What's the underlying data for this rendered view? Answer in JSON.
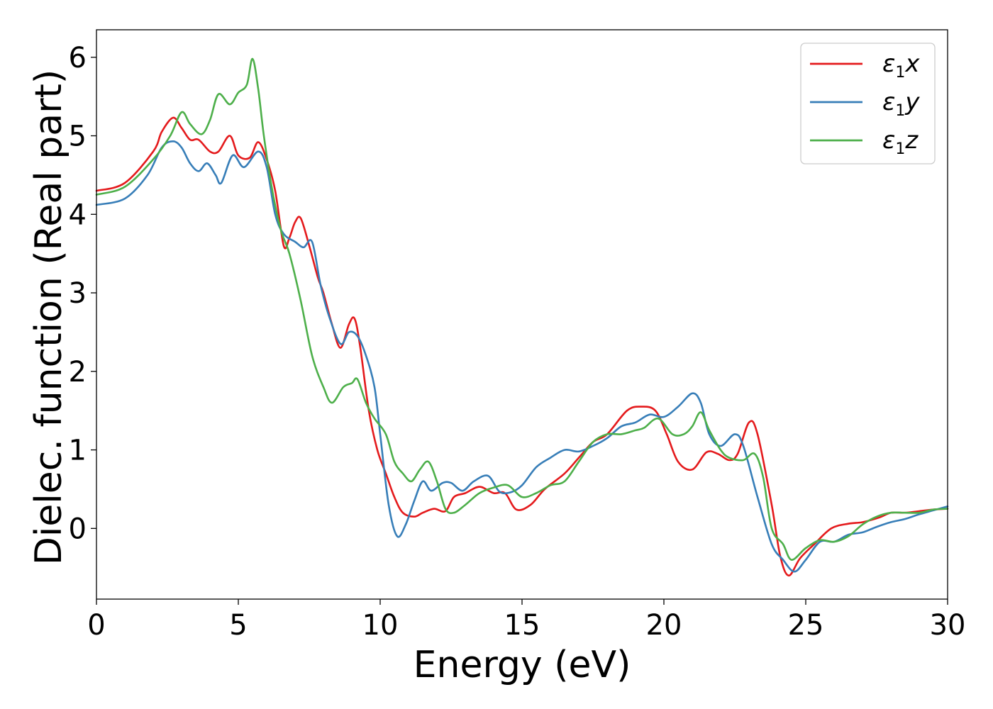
{
  "chart_data": {
    "type": "line",
    "xlabel": "Energy (eV)",
    "ylabel": "Dielec. function (Real part)",
    "xlim": [
      0,
      30
    ],
    "ylim": [
      -0.9,
      6.35
    ],
    "xticks": [
      0,
      5,
      10,
      15,
      20,
      25,
      30
    ],
    "yticks": [
      0,
      1,
      2,
      3,
      4,
      5,
      6
    ],
    "grid": false,
    "legend_position": "top-right",
    "series": [
      {
        "name": "ε1x",
        "legend_symbol": "ε",
        "legend_sub": "1",
        "legend_var": "x",
        "color": "#e41a1c",
        "points": [
          [
            0,
            4.3
          ],
          [
            1,
            4.4
          ],
          [
            2,
            4.8
          ],
          [
            2.3,
            5.05
          ],
          [
            2.7,
            5.23
          ],
          [
            3.0,
            5.1
          ],
          [
            3.3,
            4.95
          ],
          [
            3.6,
            4.95
          ],
          [
            4.0,
            4.8
          ],
          [
            4.3,
            4.8
          ],
          [
            4.7,
            5.0
          ],
          [
            5.0,
            4.75
          ],
          [
            5.4,
            4.72
          ],
          [
            5.7,
            4.92
          ],
          [
            6.0,
            4.7
          ],
          [
            6.3,
            4.3
          ],
          [
            6.6,
            3.6
          ],
          [
            6.8,
            3.7
          ],
          [
            7.0,
            3.9
          ],
          [
            7.2,
            3.95
          ],
          [
            7.5,
            3.6
          ],
          [
            7.8,
            3.2
          ],
          [
            8.0,
            3.0
          ],
          [
            8.3,
            2.6
          ],
          [
            8.6,
            2.3
          ],
          [
            8.9,
            2.6
          ],
          [
            9.1,
            2.67
          ],
          [
            9.3,
            2.3
          ],
          [
            9.6,
            1.5
          ],
          [
            9.9,
            1.0
          ],
          [
            10.2,
            0.7
          ],
          [
            10.5,
            0.4
          ],
          [
            10.8,
            0.2
          ],
          [
            11.2,
            0.15
          ],
          [
            11.5,
            0.2
          ],
          [
            11.9,
            0.25
          ],
          [
            12.3,
            0.22
          ],
          [
            12.6,
            0.4
          ],
          [
            13.0,
            0.45
          ],
          [
            13.5,
            0.53
          ],
          [
            14.0,
            0.45
          ],
          [
            14.4,
            0.45
          ],
          [
            14.8,
            0.24
          ],
          [
            15.3,
            0.3
          ],
          [
            15.8,
            0.5
          ],
          [
            16.5,
            0.7
          ],
          [
            17.0,
            0.9
          ],
          [
            17.5,
            1.1
          ],
          [
            18.0,
            1.2
          ],
          [
            18.7,
            1.5
          ],
          [
            19.2,
            1.55
          ],
          [
            19.7,
            1.5
          ],
          [
            20.1,
            1.2
          ],
          [
            20.5,
            0.85
          ],
          [
            21.0,
            0.75
          ],
          [
            21.5,
            0.97
          ],
          [
            21.9,
            0.95
          ],
          [
            22.3,
            0.87
          ],
          [
            22.6,
            0.95
          ],
          [
            23.0,
            1.35
          ],
          [
            23.3,
            1.2
          ],
          [
            23.8,
            0.3
          ],
          [
            24.1,
            -0.35
          ],
          [
            24.4,
            -0.6
          ],
          [
            24.8,
            -0.38
          ],
          [
            25.3,
            -0.2
          ],
          [
            25.9,
            0.0
          ],
          [
            26.5,
            0.06
          ],
          [
            27.0,
            0.08
          ],
          [
            27.6,
            0.14
          ],
          [
            28.0,
            0.2
          ],
          [
            28.5,
            0.2
          ],
          [
            29.0,
            0.22
          ],
          [
            29.5,
            0.24
          ],
          [
            30,
            0.25
          ]
        ]
      },
      {
        "name": "ε1y",
        "legend_symbol": "ε",
        "legend_sub": "1",
        "legend_var": "y",
        "color": "#377eb8",
        "points": [
          [
            0,
            4.12
          ],
          [
            1,
            4.2
          ],
          [
            1.8,
            4.5
          ],
          [
            2.3,
            4.85
          ],
          [
            2.7,
            4.93
          ],
          [
            3.0,
            4.85
          ],
          [
            3.3,
            4.65
          ],
          [
            3.6,
            4.55
          ],
          [
            3.9,
            4.65
          ],
          [
            4.2,
            4.5
          ],
          [
            4.4,
            4.4
          ],
          [
            4.8,
            4.75
          ],
          [
            5.2,
            4.6
          ],
          [
            5.7,
            4.8
          ],
          [
            6.0,
            4.6
          ],
          [
            6.3,
            4.0
          ],
          [
            6.6,
            3.75
          ],
          [
            7.0,
            3.65
          ],
          [
            7.3,
            3.58
          ],
          [
            7.6,
            3.65
          ],
          [
            7.9,
            3.1
          ],
          [
            8.2,
            2.7
          ],
          [
            8.6,
            2.35
          ],
          [
            8.9,
            2.5
          ],
          [
            9.2,
            2.45
          ],
          [
            9.5,
            2.2
          ],
          [
            9.8,
            1.8
          ],
          [
            10.0,
            1.2
          ],
          [
            10.3,
            0.3
          ],
          [
            10.6,
            -0.1
          ],
          [
            10.9,
            0.05
          ],
          [
            11.2,
            0.35
          ],
          [
            11.5,
            0.6
          ],
          [
            11.8,
            0.48
          ],
          [
            12.2,
            0.58
          ],
          [
            12.5,
            0.58
          ],
          [
            12.9,
            0.48
          ],
          [
            13.3,
            0.6
          ],
          [
            13.8,
            0.67
          ],
          [
            14.2,
            0.47
          ],
          [
            14.6,
            0.46
          ],
          [
            15.0,
            0.55
          ],
          [
            15.5,
            0.78
          ],
          [
            16.0,
            0.9
          ],
          [
            16.5,
            1.0
          ],
          [
            17.0,
            0.98
          ],
          [
            17.5,
            1.05
          ],
          [
            18.0,
            1.15
          ],
          [
            18.5,
            1.3
          ],
          [
            19.0,
            1.35
          ],
          [
            19.5,
            1.45
          ],
          [
            20.0,
            1.42
          ],
          [
            20.5,
            1.55
          ],
          [
            21.0,
            1.72
          ],
          [
            21.3,
            1.6
          ],
          [
            21.6,
            1.2
          ],
          [
            22.0,
            1.05
          ],
          [
            22.5,
            1.2
          ],
          [
            22.8,
            1.05
          ],
          [
            23.3,
            0.4
          ],
          [
            23.8,
            -0.2
          ],
          [
            24.2,
            -0.4
          ],
          [
            24.6,
            -0.55
          ],
          [
            25.0,
            -0.4
          ],
          [
            25.5,
            -0.17
          ],
          [
            26.0,
            -0.17
          ],
          [
            26.5,
            -0.08
          ],
          [
            27.0,
            -0.05
          ],
          [
            27.5,
            0.02
          ],
          [
            28.0,
            0.08
          ],
          [
            28.5,
            0.12
          ],
          [
            29.0,
            0.18
          ],
          [
            29.5,
            0.23
          ],
          [
            30,
            0.28
          ]
        ]
      },
      {
        "name": "ε1z",
        "legend_symbol": "ε",
        "legend_sub": "1",
        "legend_var": "z",
        "color": "#4daf4a",
        "points": [
          [
            0,
            4.25
          ],
          [
            1,
            4.35
          ],
          [
            2,
            4.7
          ],
          [
            2.6,
            5.0
          ],
          [
            3.0,
            5.3
          ],
          [
            3.3,
            5.15
          ],
          [
            3.7,
            5.02
          ],
          [
            4.0,
            5.2
          ],
          [
            4.3,
            5.53
          ],
          [
            4.7,
            5.4
          ],
          [
            5.0,
            5.55
          ],
          [
            5.3,
            5.65
          ],
          [
            5.5,
            5.98
          ],
          [
            5.7,
            5.6
          ],
          [
            5.9,
            5.0
          ],
          [
            6.2,
            4.3
          ],
          [
            6.5,
            3.8
          ],
          [
            6.8,
            3.5
          ],
          [
            7.2,
            2.9
          ],
          [
            7.6,
            2.2
          ],
          [
            8.0,
            1.8
          ],
          [
            8.3,
            1.6
          ],
          [
            8.7,
            1.8
          ],
          [
            9.0,
            1.85
          ],
          [
            9.2,
            1.9
          ],
          [
            9.5,
            1.6
          ],
          [
            9.8,
            1.4
          ],
          [
            10.2,
            1.2
          ],
          [
            10.5,
            0.85
          ],
          [
            10.8,
            0.7
          ],
          [
            11.1,
            0.6
          ],
          [
            11.4,
            0.75
          ],
          [
            11.7,
            0.85
          ],
          [
            12.0,
            0.6
          ],
          [
            12.3,
            0.25
          ],
          [
            12.6,
            0.2
          ],
          [
            13.0,
            0.3
          ],
          [
            13.5,
            0.45
          ],
          [
            14.0,
            0.52
          ],
          [
            14.5,
            0.55
          ],
          [
            15.0,
            0.4
          ],
          [
            15.5,
            0.45
          ],
          [
            16.0,
            0.55
          ],
          [
            16.5,
            0.6
          ],
          [
            17.0,
            0.85
          ],
          [
            17.5,
            1.1
          ],
          [
            18.0,
            1.2
          ],
          [
            18.5,
            1.2
          ],
          [
            19.0,
            1.25
          ],
          [
            19.3,
            1.28
          ],
          [
            19.8,
            1.4
          ],
          [
            20.3,
            1.2
          ],
          [
            20.7,
            1.2
          ],
          [
            21.0,
            1.3
          ],
          [
            21.3,
            1.48
          ],
          [
            21.6,
            1.25
          ],
          [
            22.0,
            1.0
          ],
          [
            22.3,
            0.9
          ],
          [
            22.8,
            0.87
          ],
          [
            23.2,
            0.95
          ],
          [
            23.5,
            0.65
          ],
          [
            23.8,
            0.0
          ],
          [
            24.2,
            -0.2
          ],
          [
            24.5,
            -0.4
          ],
          [
            25.0,
            -0.25
          ],
          [
            25.5,
            -0.15
          ],
          [
            26.0,
            -0.17
          ],
          [
            26.5,
            -0.1
          ],
          [
            27.0,
            0.05
          ],
          [
            27.5,
            0.15
          ],
          [
            28.0,
            0.2
          ],
          [
            28.5,
            0.2
          ],
          [
            29.0,
            0.2
          ],
          [
            29.5,
            0.24
          ],
          [
            30,
            0.25
          ]
        ]
      }
    ]
  }
}
